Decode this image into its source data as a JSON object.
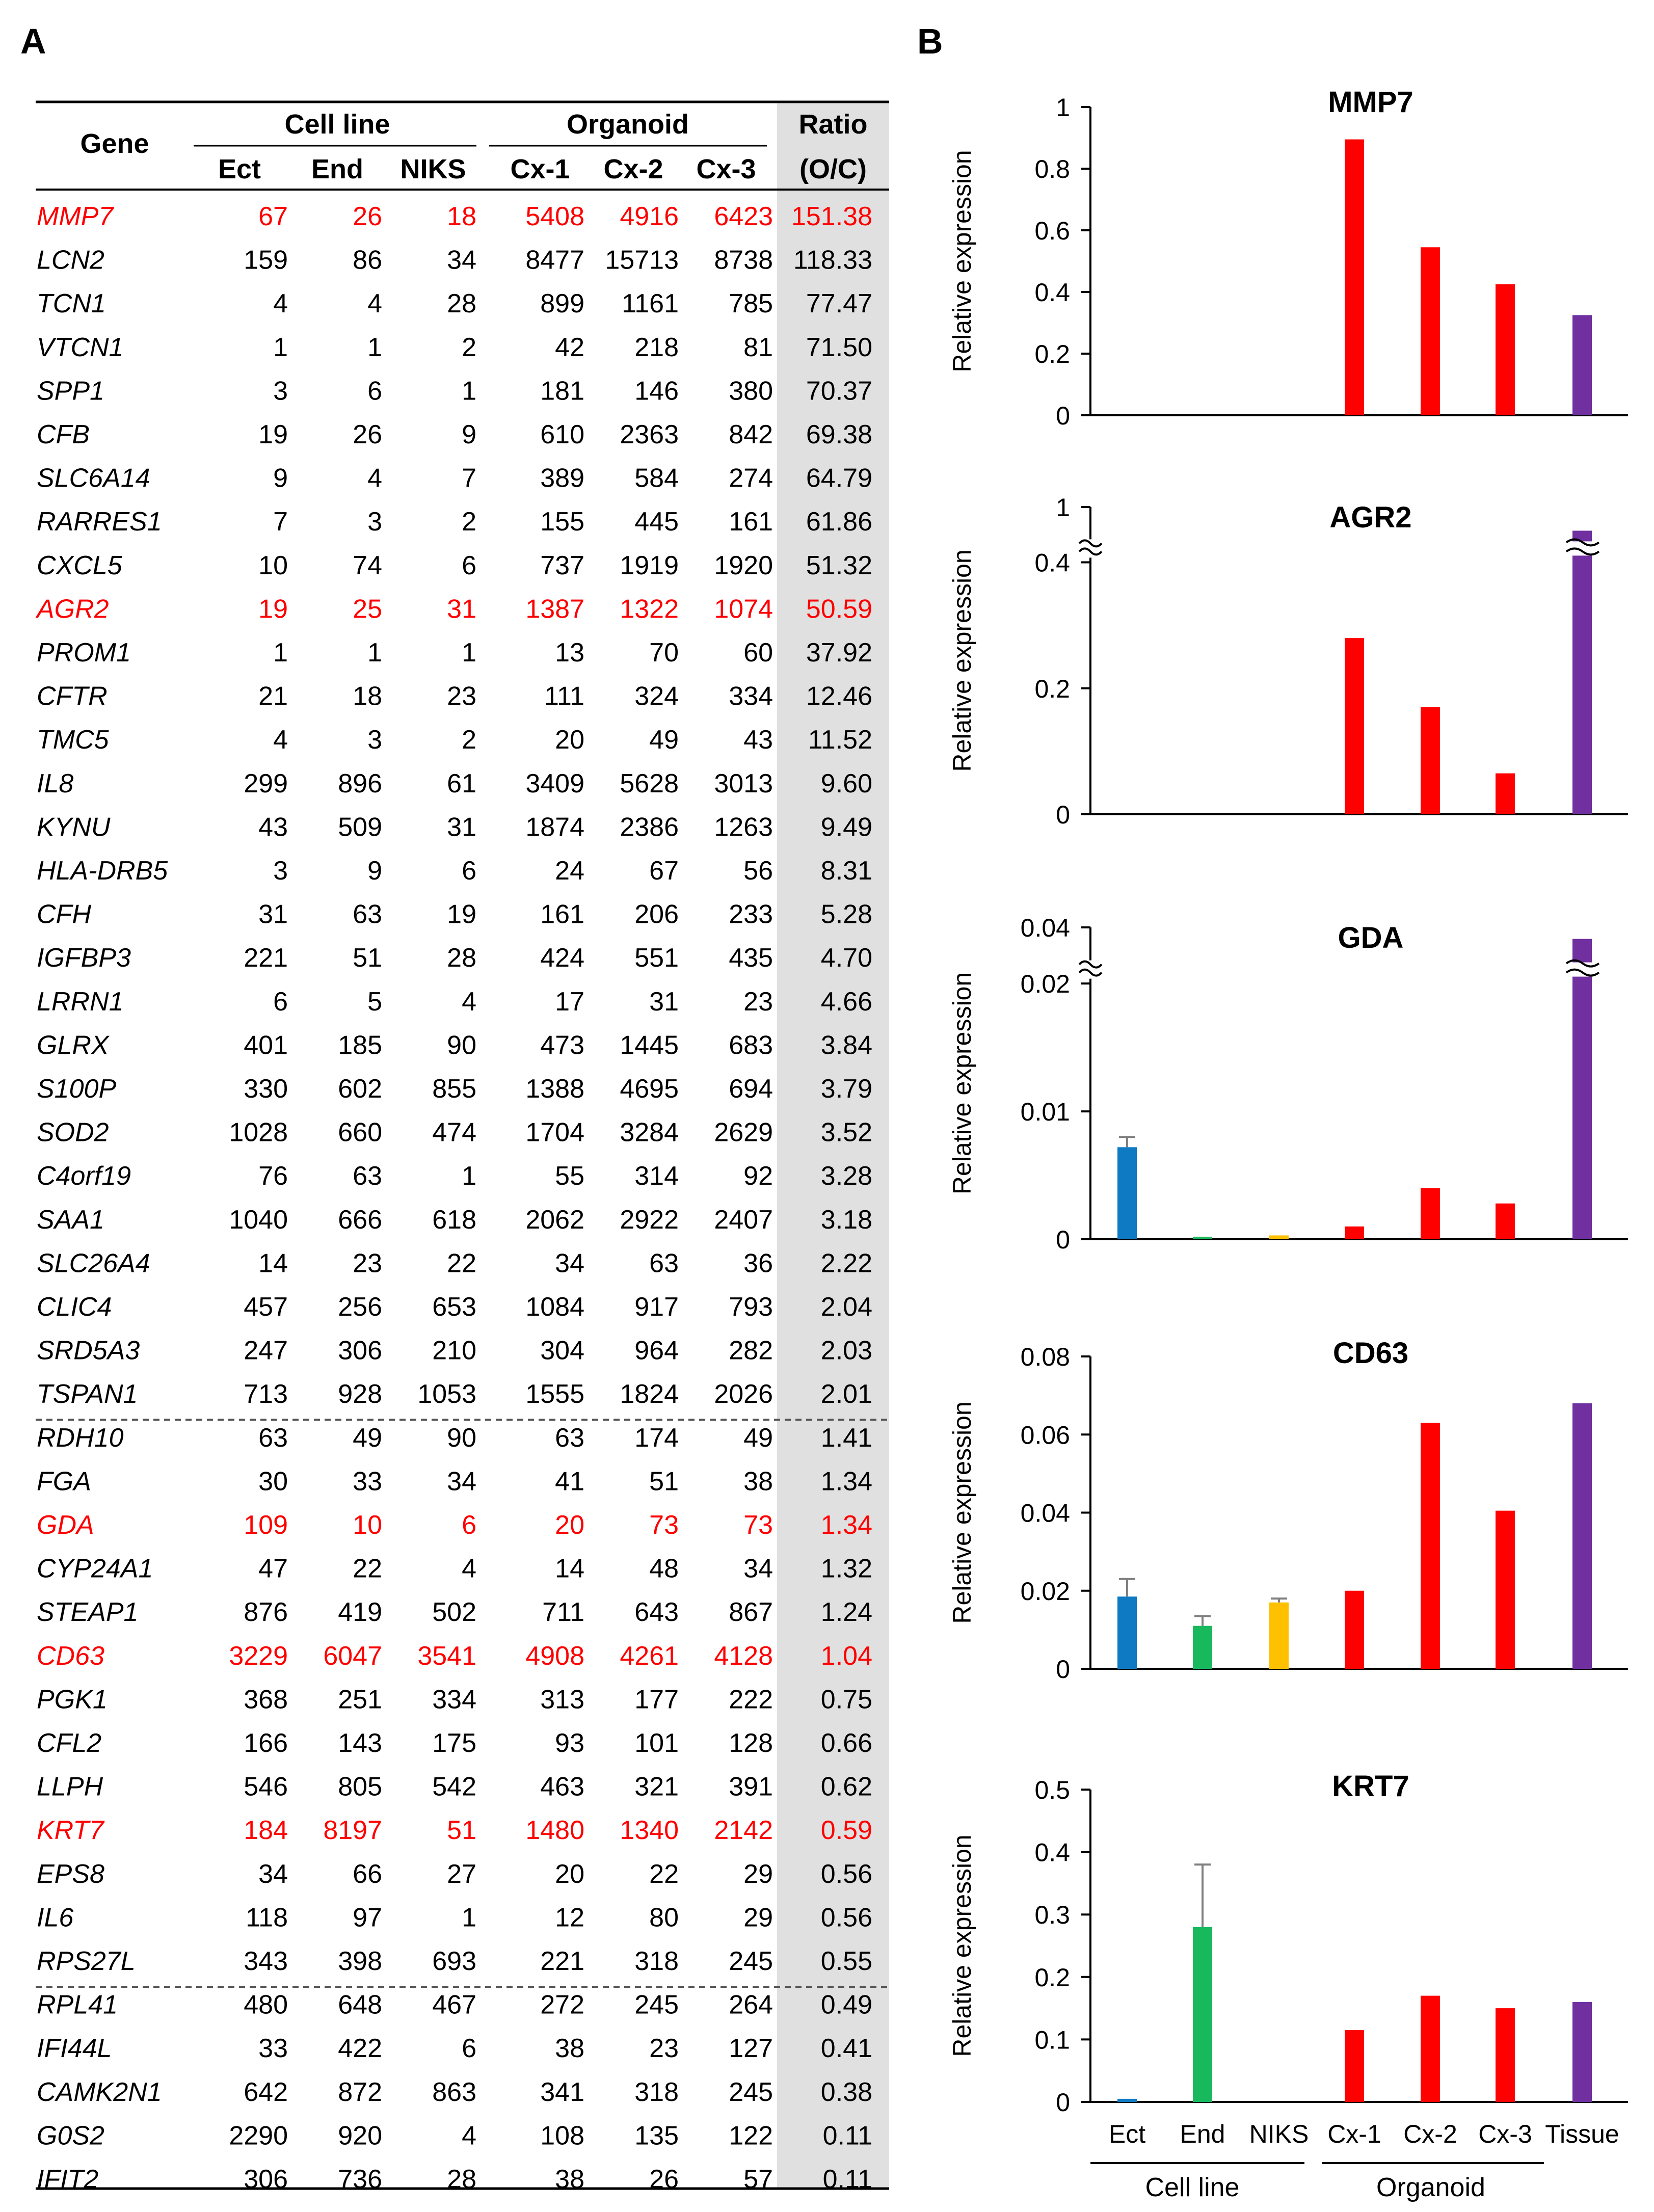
{
  "panel_a": {
    "label": "A",
    "header": {
      "gene": "Gene",
      "cell_line": "Cell line",
      "organoid": "Organoid",
      "ratio_top": "Ratio",
      "ratio_bottom": "(O/C)",
      "sub": [
        "Ect",
        "End",
        "NIKS",
        "Cx-1",
        "Cx-2",
        "Cx-3"
      ]
    },
    "rows": [
      {
        "gene": "MMP7",
        "values": [
          "67",
          "26",
          "18",
          "5408",
          "4916",
          "6423"
        ],
        "ratio": "151.38",
        "highlight": true
      },
      {
        "gene": "LCN2",
        "values": [
          "159",
          "86",
          "34",
          "8477",
          "15713",
          "8738"
        ],
        "ratio": "118.33",
        "highlight": false
      },
      {
        "gene": "TCN1",
        "values": [
          "4",
          "4",
          "28",
          "899",
          "1161",
          "785"
        ],
        "ratio": "77.47",
        "highlight": false
      },
      {
        "gene": "VTCN1",
        "values": [
          "1",
          "1",
          "2",
          "42",
          "218",
          "81"
        ],
        "ratio": "71.50",
        "highlight": false
      },
      {
        "gene": "SPP1",
        "values": [
          "3",
          "6",
          "1",
          "181",
          "146",
          "380"
        ],
        "ratio": "70.37",
        "highlight": false
      },
      {
        "gene": "CFB",
        "values": [
          "19",
          "26",
          "9",
          "610",
          "2363",
          "842"
        ],
        "ratio": "69.38",
        "highlight": false
      },
      {
        "gene": "SLC6A14",
        "values": [
          "9",
          "4",
          "7",
          "389",
          "584",
          "274"
        ],
        "ratio": "64.79",
        "highlight": false
      },
      {
        "gene": "RARRES1",
        "values": [
          "7",
          "3",
          "2",
          "155",
          "445",
          "161"
        ],
        "ratio": "61.86",
        "highlight": false
      },
      {
        "gene": "CXCL5",
        "values": [
          "10",
          "74",
          "6",
          "737",
          "1919",
          "1920"
        ],
        "ratio": "51.32",
        "highlight": false
      },
      {
        "gene": "AGR2",
        "values": [
          "19",
          "25",
          "31",
          "1387",
          "1322",
          "1074"
        ],
        "ratio": "50.59",
        "highlight": true
      },
      {
        "gene": "PROM1",
        "values": [
          "1",
          "1",
          "1",
          "13",
          "70",
          "60"
        ],
        "ratio": "37.92",
        "highlight": false
      },
      {
        "gene": "CFTR",
        "values": [
          "21",
          "18",
          "23",
          "111",
          "324",
          "334"
        ],
        "ratio": "12.46",
        "highlight": false
      },
      {
        "gene": "TMC5",
        "values": [
          "4",
          "3",
          "2",
          "20",
          "49",
          "43"
        ],
        "ratio": "11.52",
        "highlight": false
      },
      {
        "gene": "IL8",
        "values": [
          "299",
          "896",
          "61",
          "3409",
          "5628",
          "3013"
        ],
        "ratio": "9.60",
        "highlight": false
      },
      {
        "gene": "KYNU",
        "values": [
          "43",
          "509",
          "31",
          "1874",
          "2386",
          "1263"
        ],
        "ratio": "9.49",
        "highlight": false
      },
      {
        "gene": "HLA-DRB5",
        "values": [
          "3",
          "9",
          "6",
          "24",
          "67",
          "56"
        ],
        "ratio": "8.31",
        "highlight": false
      },
      {
        "gene": "CFH",
        "values": [
          "31",
          "63",
          "19",
          "161",
          "206",
          "233"
        ],
        "ratio": "5.28",
        "highlight": false
      },
      {
        "gene": "IGFBP3",
        "values": [
          "221",
          "51",
          "28",
          "424",
          "551",
          "435"
        ],
        "ratio": "4.70",
        "highlight": false
      },
      {
        "gene": "LRRN1",
        "values": [
          "6",
          "5",
          "4",
          "17",
          "31",
          "23"
        ],
        "ratio": "4.66",
        "highlight": false
      },
      {
        "gene": "GLRX",
        "values": [
          "401",
          "185",
          "90",
          "473",
          "1445",
          "683"
        ],
        "ratio": "3.84",
        "highlight": false
      },
      {
        "gene": "S100P",
        "values": [
          "330",
          "602",
          "855",
          "1388",
          "4695",
          "694"
        ],
        "ratio": "3.79",
        "highlight": false
      },
      {
        "gene": "SOD2",
        "values": [
          "1028",
          "660",
          "474",
          "1704",
          "3284",
          "2629"
        ],
        "ratio": "3.52",
        "highlight": false
      },
      {
        "gene": "C4orf19",
        "values": [
          "76",
          "63",
          "1",
          "55",
          "314",
          "92"
        ],
        "ratio": "3.28",
        "highlight": false
      },
      {
        "gene": "SAA1",
        "values": [
          "1040",
          "666",
          "618",
          "2062",
          "2922",
          "2407"
        ],
        "ratio": "3.18",
        "highlight": false
      },
      {
        "gene": "SLC26A4",
        "values": [
          "14",
          "23",
          "22",
          "34",
          "63",
          "36"
        ],
        "ratio": "2.22",
        "highlight": false
      },
      {
        "gene": "CLIC4",
        "values": [
          "457",
          "256",
          "653",
          "1084",
          "917",
          "793"
        ],
        "ratio": "2.04",
        "highlight": false
      },
      {
        "gene": "SRD5A3",
        "values": [
          "247",
          "306",
          "210",
          "304",
          "964",
          "282"
        ],
        "ratio": "2.03",
        "highlight": false
      },
      {
        "gene": "TSPAN1",
        "values": [
          "713",
          "928",
          "1053",
          "1555",
          "1824",
          "2026"
        ],
        "ratio": "2.01",
        "highlight": false
      },
      {
        "gene": "RDH10",
        "values": [
          "63",
          "49",
          "90",
          "63",
          "174",
          "49"
        ],
        "ratio": "1.41",
        "highlight": false
      },
      {
        "gene": "FGA",
        "values": [
          "30",
          "33",
          "34",
          "41",
          "51",
          "38"
        ],
        "ratio": "1.34",
        "highlight": false
      },
      {
        "gene": "GDA",
        "values": [
          "109",
          "10",
          "6",
          "20",
          "73",
          "73"
        ],
        "ratio": "1.34",
        "highlight": true
      },
      {
        "gene": "CYP24A1",
        "values": [
          "47",
          "22",
          "4",
          "14",
          "48",
          "34"
        ],
        "ratio": "1.32",
        "highlight": false
      },
      {
        "gene": "STEAP1",
        "values": [
          "876",
          "419",
          "502",
          "711",
          "643",
          "867"
        ],
        "ratio": "1.24",
        "highlight": false
      },
      {
        "gene": "CD63",
        "values": [
          "3229",
          "6047",
          "3541",
          "4908",
          "4261",
          "4128"
        ],
        "ratio": "1.04",
        "highlight": true
      },
      {
        "gene": "PGK1",
        "values": [
          "368",
          "251",
          "334",
          "313",
          "177",
          "222"
        ],
        "ratio": "0.75",
        "highlight": false
      },
      {
        "gene": "CFL2",
        "values": [
          "166",
          "143",
          "175",
          "93",
          "101",
          "128"
        ],
        "ratio": "0.66",
        "highlight": false
      },
      {
        "gene": "LLPH",
        "values": [
          "546",
          "805",
          "542",
          "463",
          "321",
          "391"
        ],
        "ratio": "0.62",
        "highlight": false
      },
      {
        "gene": "KRT7",
        "values": [
          "184",
          "8197",
          "51",
          "1480",
          "1340",
          "2142"
        ],
        "ratio": "0.59",
        "highlight": true
      },
      {
        "gene": "EPS8",
        "values": [
          "34",
          "66",
          "27",
          "20",
          "22",
          "29"
        ],
        "ratio": "0.56",
        "highlight": false
      },
      {
        "gene": "IL6",
        "values": [
          "118",
          "97",
          "1",
          "12",
          "80",
          "29"
        ],
        "ratio": "0.56",
        "highlight": false
      },
      {
        "gene": "RPS27L",
        "values": [
          "343",
          "398",
          "693",
          "221",
          "318",
          "245"
        ],
        "ratio": "0.55",
        "highlight": false
      },
      {
        "gene": "RPL41",
        "values": [
          "480",
          "648",
          "467",
          "272",
          "245",
          "264"
        ],
        "ratio": "0.49",
        "highlight": false
      },
      {
        "gene": "IFI44L",
        "values": [
          "33",
          "422",
          "6",
          "38",
          "23",
          "127"
        ],
        "ratio": "0.41",
        "highlight": false
      },
      {
        "gene": "CAMK2N1",
        "values": [
          "642",
          "872",
          "863",
          "341",
          "318",
          "245"
        ],
        "ratio": "0.38",
        "highlight": false
      },
      {
        "gene": "G0S2",
        "values": [
          "2290",
          "920",
          "4",
          "108",
          "135",
          "122"
        ],
        "ratio": "0.11",
        "highlight": false
      },
      {
        "gene": "IFIT2",
        "values": [
          "306",
          "736",
          "28",
          "38",
          "26",
          "57"
        ],
        "ratio": "0.11",
        "highlight": false
      }
    ],
    "dashed_after_rows": [
      27,
      40
    ]
  },
  "panel_b": {
    "label": "B"
  },
  "colors": {
    "highlight_text": "#ff0000",
    "ratio_bg": "#e0e0e0",
    "Ect": "#0f7ac4",
    "End": "#18b85c",
    "NIKS": "#ffc000",
    "Organoid": "#ff0000",
    "Tissue": "#7030a0",
    "error_bar": "#808080"
  },
  "chart_data": [
    {
      "type": "bar",
      "title": "MMP7",
      "ylabel": "Relative expression",
      "categories": [
        "Ect",
        "End",
        "NIKS",
        "Cx-1",
        "Cx-2",
        "Cx-3",
        "Tissue"
      ],
      "values": [
        0,
        0,
        0,
        0.895,
        0.545,
        0.425,
        0.325
      ],
      "errors": [
        0,
        0,
        0,
        0,
        0,
        0,
        0
      ],
      "ylim": [
        0,
        1
      ],
      "yticks": [
        "0",
        "0.2",
        "0.4",
        "0.6",
        "0.8",
        "1"
      ],
      "axis_break": false
    },
    {
      "type": "bar",
      "title": "AGR2",
      "ylabel": "Relative expression",
      "categories": [
        "Ect",
        "End",
        "NIKS",
        "Cx-1",
        "Cx-2",
        "Cx-3",
        "Tissue"
      ],
      "values": [
        0,
        0,
        0,
        0.28,
        0.17,
        0.065,
        0.93
      ],
      "errors": [
        0,
        0,
        0,
        0,
        0,
        0,
        0
      ],
      "ylim": [
        0,
        1
      ],
      "yticks": [
        "0",
        "0.2",
        "0.4",
        "1"
      ],
      "axis_break": true,
      "break_low": 0.5,
      "break_high": 0.9
    },
    {
      "type": "bar",
      "title": "GDA",
      "ylabel": "Relative expression",
      "categories": [
        "Ect",
        "End",
        "NIKS",
        "Cx-1",
        "Cx-2",
        "Cx-3",
        "Tissue"
      ],
      "values": [
        0.0072,
        0.0002,
        0.0003,
        0.001,
        0.004,
        0.0028,
        0.038
      ],
      "errors": [
        0.0008,
        0,
        0,
        0,
        0,
        0,
        0
      ],
      "ylim": [
        0,
        0.04
      ],
      "yticks": [
        "0",
        "0.01",
        "0.02",
        "0.04"
      ],
      "axis_break": true,
      "break_low": 0.025,
      "break_high": 0.034
    },
    {
      "type": "bar",
      "title": "CD63",
      "ylabel": "Relative expression",
      "categories": [
        "Ect",
        "End",
        "NIKS",
        "Cx-1",
        "Cx-2",
        "Cx-3",
        "Tissue"
      ],
      "values": [
        0.0185,
        0.011,
        0.017,
        0.02,
        0.063,
        0.0405,
        0.068
      ],
      "errors": [
        0.0045,
        0.0025,
        0.001,
        0,
        0,
        0,
        0
      ],
      "ylim": [
        0,
        0.08
      ],
      "yticks": [
        "0",
        "0.02",
        "0.04",
        "0.06",
        "0.08"
      ],
      "axis_break": false
    },
    {
      "type": "bar",
      "title": "KRT7",
      "ylabel": "Relative expression",
      "categories": [
        "Ect",
        "End",
        "NIKS",
        "Cx-1",
        "Cx-2",
        "Cx-3",
        "Tissue"
      ],
      "values": [
        0.005,
        0.28,
        0,
        0.115,
        0.17,
        0.15,
        0.16
      ],
      "errors": [
        0,
        0.1,
        0,
        0,
        0,
        0,
        0
      ],
      "ylim": [
        0,
        0.5
      ],
      "yticks": [
        "0",
        "0.1",
        "0.2",
        "0.3",
        "0.4",
        "0.5"
      ],
      "axis_break": false
    }
  ],
  "x_axis": {
    "categories": [
      "Ect",
      "End",
      "NIKS",
      "Cx-1",
      "Cx-2",
      "Cx-3",
      "Tissue"
    ],
    "group_cell_line": "Cell line",
    "group_organoid": "Organoid"
  }
}
